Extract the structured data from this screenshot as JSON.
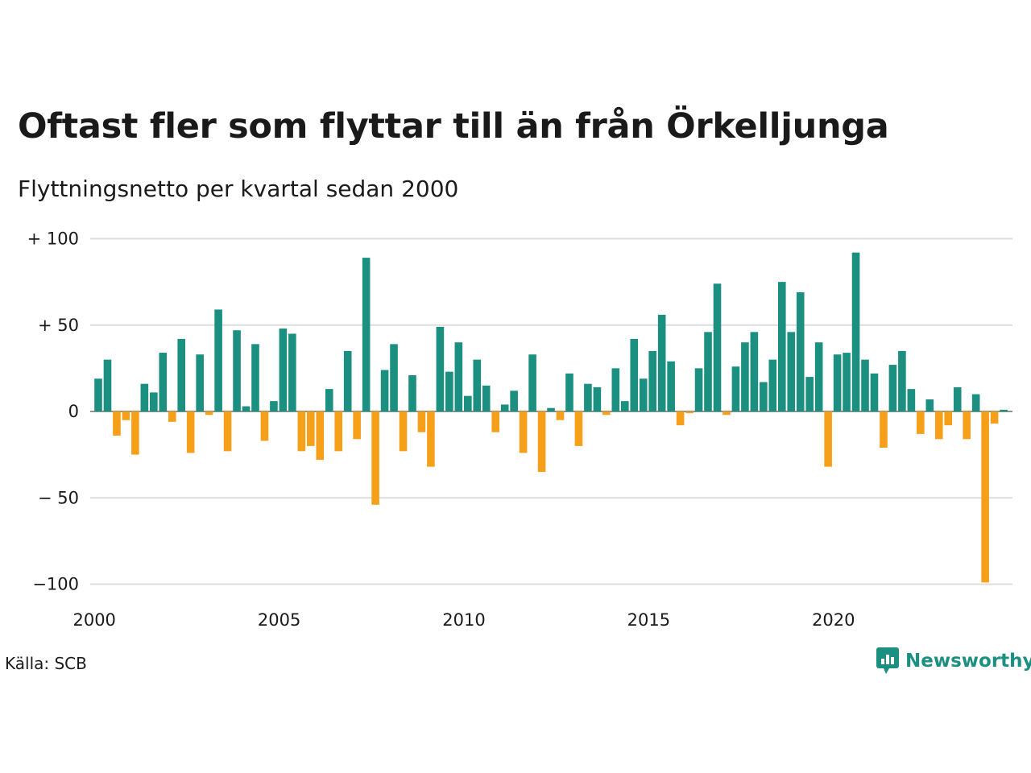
{
  "title": "Oftast fler som flyttar till än från Örkelljunga",
  "subtitle": "Flyttningsnetto per kvartal sedan 2000",
  "source": "Källa: SCB",
  "brand": {
    "name": "Newsworthy",
    "icon": "newsworthy-logo-icon",
    "color": "#1b9080"
  },
  "colors": {
    "positive": "#1b9080",
    "negative": "#f6a01a",
    "grid": "#dddddd"
  },
  "chart_data": {
    "type": "bar",
    "x_start": "2000-Q1",
    "ylim": [
      -100,
      100
    ],
    "y_ticks": [
      100,
      50,
      0,
      -50,
      -100
    ],
    "y_tick_labels": [
      "+ 100",
      "+  50",
      "0",
      "− 50",
      "−100"
    ],
    "x_tick_labels": [
      "2000",
      "2005",
      "2010",
      "2015",
      "2020"
    ],
    "grid": true,
    "values": [
      19,
      30,
      -14,
      -5,
      -25,
      16,
      11,
      34,
      -6,
      42,
      -24,
      33,
      -2,
      59,
      -23,
      47,
      3,
      39,
      -17,
      6,
      48,
      45,
      -23,
      -20,
      -28,
      13,
      -23,
      35,
      -16,
      89,
      -54,
      24,
      39,
      -23,
      21,
      -12,
      -32,
      49,
      23,
      40,
      9,
      30,
      15,
      -12,
      4,
      12,
      -24,
      33,
      -35,
      2,
      -5,
      22,
      -20,
      16,
      14,
      -2,
      25,
      6,
      42,
      19,
      35,
      56,
      29,
      -8,
      -1,
      25,
      46,
      74,
      -2,
      26,
      40,
      46,
      17,
      30,
      75,
      46,
      69,
      20,
      40,
      -32,
      33,
      34,
      92,
      30,
      22,
      -21,
      27,
      35,
      13,
      -13,
      7,
      -16,
      -8,
      14,
      -16,
      10,
      -99,
      -7,
      1
    ]
  }
}
